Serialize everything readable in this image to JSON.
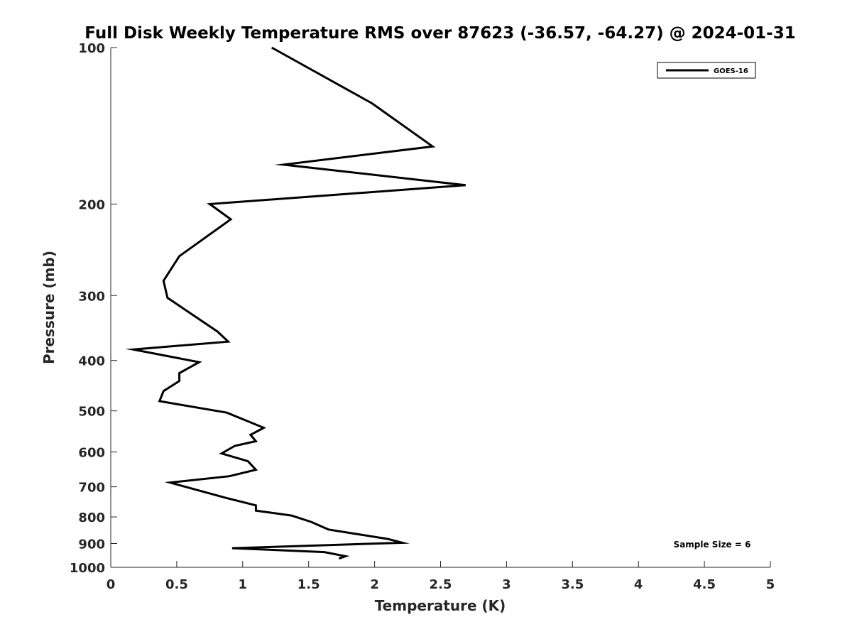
{
  "chart_data": {
    "type": "line",
    "title": "Full Disk Weekly Temperature RMS over 87623 (-36.57, -64.27) @ 2024-01-31",
    "xlabel": "Temperature (K)",
    "ylabel": "Pressure (mb)",
    "xlim": [
      0,
      5
    ],
    "ylim": [
      100,
      1000
    ],
    "y_scale": "log",
    "y_reversed": true,
    "grid": false,
    "legend_position": "top-right",
    "x_ticks": [
      "0",
      "0.5",
      "1",
      "1.5",
      "2",
      "2.5",
      "3",
      "3.5",
      "4",
      "4.5",
      "5"
    ],
    "y_ticks": [
      "100",
      "200",
      "300",
      "400",
      "500",
      "600",
      "700",
      "800",
      "900",
      "1000"
    ],
    "annotation": "Sample Size = 6",
    "series": [
      {
        "name": "GOES-16",
        "color": "#000000",
        "x": [
          1.22,
          1.98,
          2.44,
          1.31,
          2.69,
          0.75,
          0.91,
          0.52,
          0.4,
          0.43,
          0.81,
          0.89,
          0.17,
          0.67,
          0.52,
          0.52,
          0.4,
          0.37,
          0.88,
          1.16,
          1.06,
          1.1,
          0.94,
          0.84,
          1.04,
          1.1,
          0.9,
          0.45,
          0.87,
          1.1,
          1.1,
          1.37,
          1.52,
          1.65,
          2.1,
          2.21,
          0.92,
          1.62,
          1.78,
          1.73
        ],
        "y": [
          100,
          128,
          155,
          168,
          184,
          200,
          214,
          252,
          281,
          303,
          352,
          368,
          381,
          403,
          423,
          438,
          458,
          479,
          504,
          539,
          556,
          572,
          584,
          604,
          625,
          649,
          668,
          687,
          735,
          760,
          778,
          795,
          818,
          846,
          882,
          897,
          919,
          935,
          952,
          962
        ]
      }
    ]
  }
}
